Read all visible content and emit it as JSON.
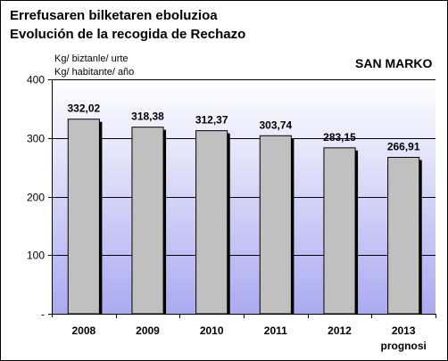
{
  "header": {
    "title_line1": "Errefusaren bilketaren eboluzioa",
    "title_line2": "Evolución de la recogida de Rechazo",
    "unit_line1": "Kg/ biztanle/ urte",
    "unit_line2": "Kg/ habitante/ año",
    "place": "SAN MARKO"
  },
  "colors": {
    "plot_top": "#ffffff",
    "plot_bottom": "#aaaaf0",
    "bar_fill": "#c0c0c0",
    "bar_shadow": "#000000",
    "grid": "#000000"
  },
  "chart_data": {
    "type": "bar",
    "categories": [
      "2008",
      "2009",
      "2010",
      "2011",
      "2012",
      "2013"
    ],
    "values": [
      332.02,
      318.38,
      312.37,
      303.74,
      283.15,
      266.91
    ],
    "value_labels": [
      "332,02",
      "318,38",
      "312,37",
      "303,74",
      "283,15",
      "266,91"
    ],
    "category_notes": [
      "",
      "",
      "",
      "",
      "",
      "prognosi"
    ],
    "yticks": [
      0,
      100,
      200,
      300,
      400
    ],
    "ytick_labels": [
      "-",
      "100",
      "200",
      "300",
      "400"
    ],
    "ylim": [
      0,
      400
    ],
    "grid": true,
    "title": "Errefusaren bilketaren eboluzioa / Evolución de la recogida de Rechazo",
    "ylabel": "Kg/ biztanle/ urte — Kg/ habitante/ año"
  }
}
